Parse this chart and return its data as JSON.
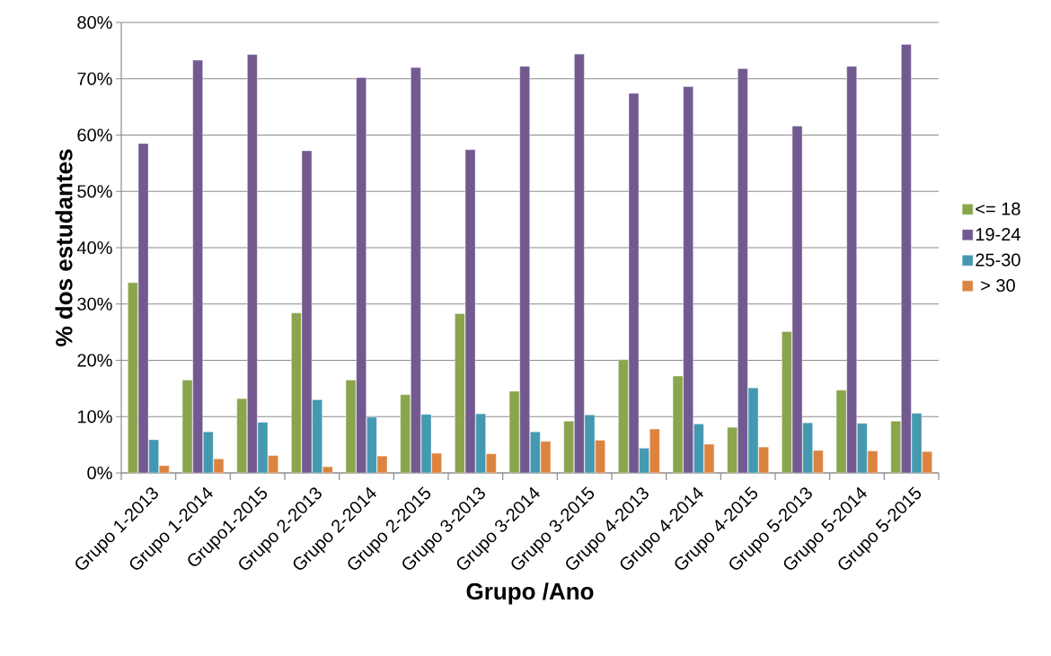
{
  "chart_data": {
    "type": "bar",
    "xlabel": "Grupo /Ano",
    "ylabel": "% dos estudantes",
    "categories": [
      "Grupo 1-2013",
      "Grupo 1-2014",
      "Grupo1-2015",
      "Grupo 2-2013",
      "Grupo 2-2014",
      "Grupo 2-2015",
      "Grupo 3-2013",
      "Grupo 3-2014",
      "Grupo 3-2015",
      "Grupo 4-2013",
      "Grupo 4-2014",
      "Grupo 4-2015",
      "Grupo 5-2013",
      "Grupo 5-2014",
      "Grupo 5-2015"
    ],
    "series": [
      {
        "name": "<= 18",
        "color": "#8aa54c",
        "values": [
          33.8,
          16.5,
          13.2,
          28.4,
          16.5,
          13.9,
          28.3,
          14.5,
          9.2,
          20.1,
          17.2,
          8.1,
          25.1,
          14.7,
          9.2
        ]
      },
      {
        "name": "19-24",
        "color": "#725a90",
        "values": [
          58.5,
          73.3,
          74.3,
          57.2,
          70.2,
          72.0,
          57.4,
          72.2,
          74.4,
          67.4,
          68.6,
          71.8,
          61.6,
          72.2,
          76.1
        ]
      },
      {
        "name": "25-30",
        "color": "#4499b1",
        "values": [
          5.9,
          7.3,
          9.0,
          13.0,
          9.9,
          10.4,
          10.5,
          7.3,
          10.3,
          4.4,
          8.7,
          15.1,
          8.9,
          8.8,
          10.6
        ]
      },
      {
        "name": "> 30",
        "color": "#dc843f",
        "values": [
          1.3,
          2.5,
          3.1,
          1.1,
          3.0,
          3.5,
          3.4,
          5.6,
          5.8,
          7.8,
          5.1,
          4.6,
          4.0,
          3.9,
          3.8
        ]
      }
    ],
    "ylim": [
      0,
      80
    ],
    "yticks": [
      {
        "value": 0,
        "label": "0%"
      },
      {
        "value": 10,
        "label": "10%"
      },
      {
        "value": 20,
        "label": "20%"
      },
      {
        "value": 30,
        "label": "30%"
      },
      {
        "value": 40,
        "label": "40%"
      },
      {
        "value": 50,
        "label": "50%"
      },
      {
        "value": 60,
        "label": "60%"
      },
      {
        "value": 70,
        "label": "70%"
      },
      {
        "value": 80,
        "label": "80%"
      }
    ],
    "grid": "y",
    "legend": "right"
  }
}
